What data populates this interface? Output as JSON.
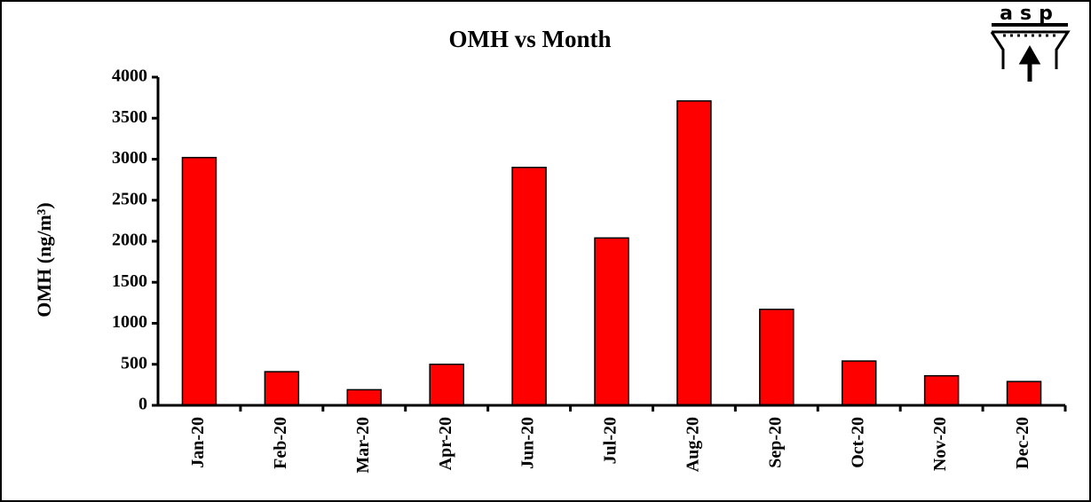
{
  "chart_data": {
    "type": "bar",
    "title": "OMH vs Month",
    "y_label": "OMH (ng/m³)",
    "logo": "asp",
    "categories": [
      "Jan-20",
      "Feb-20",
      "Mar-20",
      "Apr-20",
      "Jun-20",
      "Jul-20",
      "Aug-20",
      "Sep-20",
      "Oct-20",
      "Nov-20",
      "Dec-20"
    ],
    "values": [
      3020,
      410,
      190,
      500,
      2900,
      2040,
      3710,
      1170,
      540,
      360,
      290
    ],
    "color": "#ff0000",
    "ylim": [
      0,
      4000
    ],
    "yticks": [
      0,
      500,
      1000,
      1500,
      2000,
      2500,
      3000,
      3500,
      4000
    ],
    "grid": false
  }
}
